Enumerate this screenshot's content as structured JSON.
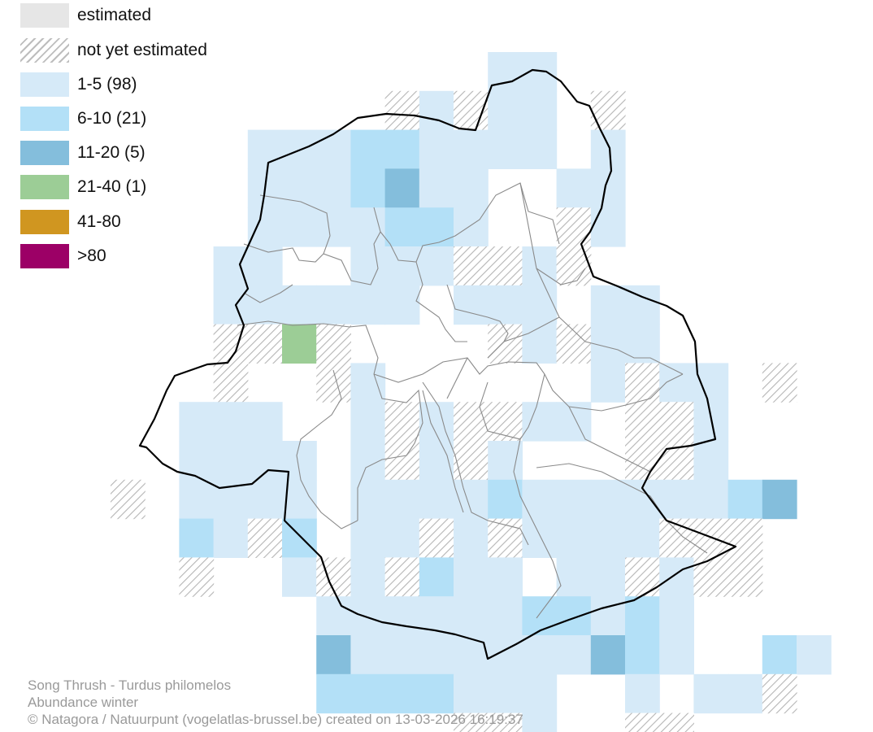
{
  "legend": {
    "items": [
      {
        "label": "estimated",
        "color": "#e6e6e6",
        "pattern": "none"
      },
      {
        "label": "not yet estimated",
        "color": "#ffffff",
        "pattern": "hatch"
      },
      {
        "label": "1-5 (98)",
        "color": "#d6eaf8",
        "pattern": "none"
      },
      {
        "label": "6-10 (21)",
        "color": "#b3e0f7",
        "pattern": "none"
      },
      {
        "label": "11-20 (5)",
        "color": "#84bedc",
        "pattern": "none"
      },
      {
        "label": "21-40 (1)",
        "color": "#9ccd96",
        "pattern": "none"
      },
      {
        "label": "41-80",
        "color": "#d09620",
        "pattern": "none"
      },
      {
        "label": ">80",
        "color": "#9c0066",
        "pattern": "none"
      }
    ]
  },
  "map": {
    "colors": {
      "c1": "#d6eaf8",
      "c2": "#b3e0f7",
      "c3": "#84bedc",
      "c4": "#9ccd96",
      "hatch": "#b5b5b5",
      "boundary": "#000000",
      "communes": "#8a8a8a"
    }
  },
  "footer": {
    "species": "Song Thrush - Turdus philomelos",
    "subtitle": "Abundance winter",
    "credit": "© Natagora / Natuurpunt (vogelatlas-brussel.be) created on 13-03-2026 16:19:37"
  }
}
